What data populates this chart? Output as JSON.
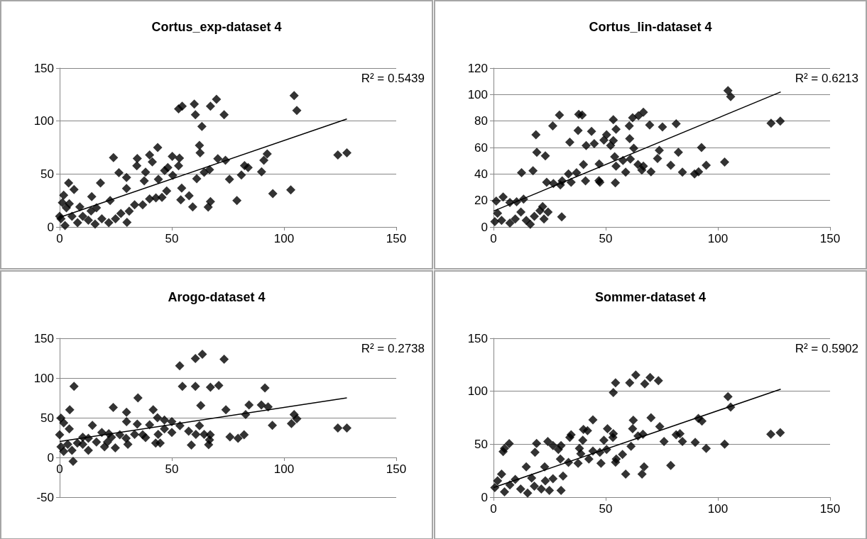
{
  "chart_data": [
    {
      "type": "scatter",
      "title": "Cortus_exp-dataset 4",
      "xlim": [
        0,
        150
      ],
      "xticks": [
        0,
        50,
        100,
        150
      ],
      "ylim": [
        0,
        150
      ],
      "yticks": [
        0,
        50,
        100,
        150
      ],
      "grid": "y",
      "marker": "diamond",
      "annotations": [
        "R² = 0.5439"
      ],
      "series": [
        {
          "color": "#000000",
          "x": [
            104.5,
            105.7,
            124,
            128,
            103,
            95,
            92.5,
            91,
            90,
            84,
            82.4,
            81,
            79,
            75.7,
            73.9,
            70.5,
            73.3,
            69.9,
            67.2,
            63.4,
            60.5,
            60,
            62.3,
            62.6,
            66.8,
            64.4,
            61.1,
            67.2,
            66.2,
            59.3,
            57.7,
            54.4,
            54,
            54.6,
            53,
            53.4,
            53,
            50.2,
            50.4,
            48.2,
            46.8,
            47.7,
            45.6,
            42.9,
            40.1,
            43.7,
            44,
            40.1,
            41.3,
            38.3,
            37.7,
            37,
            34.6,
            34.4,
            33.4,
            31,
            30,
            29.8,
            29.8,
            26.4,
            24,
            22.5,
            18.2,
            14.3,
            4,
            6.4,
            1.8,
            0.6,
            3,
            5.5,
            8,
            10.3,
            12.8,
            15.8,
            18.8,
            21.9,
            24.9,
            27.3,
            1.2,
            4.3,
            9,
            14,
            16.4,
            0,
            2.4
          ],
          "values": [
            124,
            110,
            68,
            70,
            35,
            31.5,
            69,
            63,
            52,
            56,
            58,
            49,
            25,
            45,
            63,
            64.5,
            106,
            120.5,
            114,
            95,
            106,
            116,
            77,
            70,
            54,
            51.5,
            45.6,
            24,
            18.7,
            19,
            29.5,
            36.7,
            25.6,
            114,
            111.5,
            65,
            57.7,
            66.7,
            48.7,
            56,
            53.3,
            34,
            28,
            27.4,
            26.4,
            75,
            45,
            68,
            61.5,
            51.8,
            43.6,
            21,
            64.6,
            57.7,
            21,
            14.9,
            4.4,
            36.4,
            46.7,
            51.3,
            65.4,
            24.9,
            41.5,
            28.7,
            41.5,
            35.4,
            30,
            7.7,
            18,
            10,
            4,
            10,
            6.4,
            2.6,
            7.7,
            4,
            7.7,
            12.8,
            23,
            22,
            19,
            15,
            18,
            10,
            1.3
          ]
        },
        {
          "type": "line",
          "color": "#000000",
          "line_style": "solid",
          "marker": "none",
          "x": [
            0,
            128
          ],
          "values": [
            9,
            102
          ]
        }
      ]
    },
    {
      "type": "scatter",
      "title": "Cortus_lin-dataset 4",
      "xlim": [
        0,
        150
      ],
      "xticks": [
        0,
        50,
        100,
        150
      ],
      "ylim": [
        0,
        120
      ],
      "yticks": [
        0,
        20,
        40,
        60,
        80,
        100,
        120
      ],
      "grid": "y",
      "marker": "diamond",
      "annotations": [
        "R² = 0.6213"
      ],
      "series": [
        {
          "color": "#000000",
          "x": [
            104.5,
            105.7,
            123.7,
            127.8,
            103,
            94.8,
            92.7,
            91.4,
            89.6,
            84.2,
            82.4,
            81.4,
            79,
            75.3,
            73.9,
            73.1,
            70.2,
            69.6,
            66.8,
            64.6,
            62,
            60.5,
            60.7,
            62.5,
            64.4,
            66.8,
            66.1,
            61,
            58.9,
            57.7,
            54,
            54.6,
            54.3,
            54.6,
            53.4,
            53.4,
            52.2,
            50.4,
            49.2,
            47.1,
            47.4,
            47,
            43.7,
            44.9,
            41.3,
            41,
            40.1,
            39.5,
            38,
            37.7,
            37,
            34.6,
            33.4,
            34,
            30.6,
            29.8,
            26.7,
            23.7,
            29.4,
            26.4,
            23.1,
            19.3,
            18.9,
            17.6,
            12.5,
            30.4,
            13.4,
            1.2,
            4.3,
            7.3,
            10.3,
            0.6,
            1.8,
            3.6,
            7.3,
            9.7,
            12.2,
            14.6,
            16.4,
            18.2,
            20.7,
            22.5,
            24.3,
            21.9
          ],
          "values": [
            103,
            98.5,
            78.4,
            80,
            49,
            46.6,
            60,
            41.6,
            40,
            41.4,
            56.4,
            78,
            46.6,
            75.5,
            57.8,
            51.7,
            41.6,
            77,
            86.6,
            84,
            82.5,
            76.3,
            66.7,
            59.5,
            47.2,
            46,
            43,
            51.3,
            41.4,
            50.2,
            53,
            46,
            33.4,
            73.8,
            81,
            65.2,
            61.5,
            69.7,
            65.6,
            47.6,
            33.8,
            35,
            72.2,
            63,
            61.5,
            34.8,
            47.2,
            84.5,
            85,
            72.8,
            41,
            33.8,
            40,
            64,
            34.8,
            31.8,
            32.8,
            33.8,
            84.5,
            76.3,
            53.7,
            56.4,
            69.7,
            42.5,
            41,
            7.6,
            21,
            19.5,
            22.6,
            18.5,
            19,
            4,
            10.3,
            5,
            3,
            6,
            11.3,
            5,
            2,
            8,
            12.3,
            6,
            11.3,
            15.4
          ]
        },
        {
          "type": "line",
          "color": "#000000",
          "line_style": "solid",
          "x": [
            0,
            128
          ],
          "values": [
            12,
            102
          ],
          "marker": "none"
        }
      ]
    },
    {
      "type": "scatter",
      "title": "Arogo-dataset 4",
      "xlim": [
        0,
        150
      ],
      "xticks": [
        0,
        50,
        100,
        150
      ],
      "ylim": [
        -50,
        150
      ],
      "yticks": [
        -50,
        0,
        50,
        100,
        150
      ],
      "grid": "y",
      "marker": "diamond",
      "annotations": [
        "R² = 0.2738"
      ],
      "series": [
        {
          "color": "#000000",
          "x": [
            63.6,
            60.5,
            73.3,
            53.5,
            6.4,
            54.7,
            60.5,
            67.2,
            70.9,
            91.5,
            34.9,
            23.9,
            4.5,
            41.7,
            74.1,
            84.4,
            89.9,
            92.9,
            62.9,
            29.8,
            29.8,
            34.6,
            0.6,
            1.8,
            82.9,
            104.5,
            105.7,
            103.3,
            94.8,
            124,
            128,
            82.2,
            79.5,
            75.9,
            67.1,
            66.8,
            66.4,
            64.4,
            60.7,
            62.3,
            58.7,
            57.5,
            53.6,
            50,
            50,
            46.7,
            46.7,
            43.6,
            43.9,
            44.8,
            42.8,
            40.1,
            38.3,
            37,
            33.4,
            30.4,
            29.6,
            26.8,
            24.8,
            6,
            0.6,
            0,
            1.8,
            3.6,
            5.5,
            4.3,
            7.9,
            10.3,
            12.8,
            14.6,
            16.4,
            18.8,
            20,
            21.3,
            21.9,
            23.1,
            10.3,
            12.8
          ],
          "values": [
            130,
            124.5,
            123.6,
            115.5,
            89.4,
            89.4,
            89.4,
            88.5,
            90.6,
            87.6,
            75,
            63,
            60,
            60,
            60,
            66,
            66,
            63.6,
            65.4,
            57,
            45,
            42,
            49.5,
            43.5,
            54,
            54,
            48.6,
            42.6,
            40.5,
            37,
            37,
            28.5,
            24,
            26,
            28.5,
            22,
            16,
            29,
            29,
            40,
            15.6,
            33,
            40,
            31.5,
            45,
            47,
            36,
            50,
            29,
            18,
            18,
            41,
            25,
            28.5,
            29,
            16.5,
            24,
            28.5,
            12,
            -5,
            13.5,
            28.5,
            7.5,
            16.5,
            9,
            36,
            18,
            16.5,
            9,
            40.5,
            19.5,
            31.5,
            13.5,
            19.5,
            30,
            25.5,
            25.5,
            24
          ]
        },
        {
          "type": "line",
          "color": "#000000",
          "line_style": "solid",
          "x": [
            0,
            128
          ],
          "values": [
            20,
            75
          ],
          "marker": "none"
        }
      ]
    },
    {
      "type": "scatter",
      "title": "Sommer-dataset 4",
      "xlim": [
        0,
        150
      ],
      "xticks": [
        0,
        50,
        100,
        150
      ],
      "ylim": [
        0,
        150
      ],
      "yticks": [
        0,
        50,
        100,
        150
      ],
      "grid": "y",
      "marker": "diamond",
      "annotations": [
        "R² = 0.5902"
      ],
      "series": [
        {
          "color": "#000000",
          "x": [
            63.4,
            60.7,
            54.4,
            53.4,
            67.4,
            69.8,
            73.5,
            104.5,
            105.7,
            91.3,
            92.9,
            70.2,
            74.1,
            62.3,
            62,
            64.4,
            66.6,
            61.3,
            57.5,
            54.7,
            54.4,
            58.9,
            66.2,
            67.1,
            79,
            76,
            81.4,
            83.1,
            84.2,
            89.9,
            94.8,
            103,
            123.6,
            127.8,
            50.8,
            53.4,
            53.2,
            49.2,
            50.4,
            47.4,
            47.9,
            44.3,
            41.9,
            40.1,
            39.8,
            38.3,
            38.9,
            37.7,
            42.5,
            44.3,
            34.6,
            34,
            33.4,
            29.8,
            30.1,
            28.9,
            26.5,
            24.2,
            22.8,
            19.2,
            18.5,
            31,
            30.1,
            26.5,
            14.6,
            7,
            4.3,
            4.9,
            0.6,
            1.8,
            3.6,
            4.9,
            7.3,
            9.7,
            12.1,
            15.2,
            17,
            18.2,
            21.3,
            23.1,
            24.9
          ],
          "values": [
            115.4,
            108,
            108,
            98.7,
            107,
            113,
            110,
            95,
            85,
            74.4,
            71.8,
            75,
            66.7,
            72.6,
            64.6,
            57.7,
            59.5,
            48,
            40.3,
            36,
            33,
            21.8,
            21.8,
            28.7,
            30,
            52.6,
            59,
            60,
            52.6,
            51.8,
            46,
            50,
            59.5,
            61,
            64.6,
            60,
            56.4,
            53.8,
            45,
            42.3,
            32,
            73,
            62.8,
            64,
            53.8,
            46,
            41,
            32,
            36,
            43.6,
            59,
            56.4,
            32.8,
            36,
            48.7,
            45,
            48.7,
            52.6,
            28.7,
            50.8,
            42.3,
            20,
            6.4,
            17.4,
            28.7,
            50.5,
            43,
            46,
            9,
            15.4,
            21.8,
            5,
            11.5,
            16.7,
            7.7,
            3.8,
            18,
            10.3,
            7.7,
            15.4,
            6.4
          ]
        },
        {
          "type": "line",
          "color": "#000000",
          "line_style": "solid",
          "marker": "none",
          "x": [
            0,
            128
          ],
          "values": [
            9,
            102
          ]
        }
      ]
    }
  ]
}
